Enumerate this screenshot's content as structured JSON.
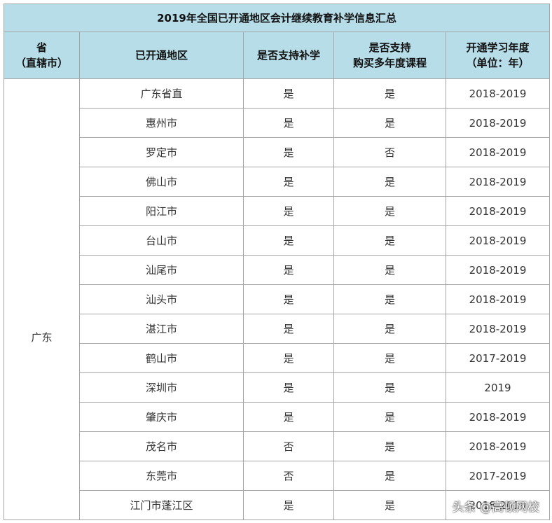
{
  "title": "2019年全国已开通地区会计继续教育补学信息汇总",
  "headers": [
    [
      "省",
      "（直辖市）"
    ],
    [
      "已开通地区"
    ],
    [
      "是否支持补学"
    ],
    [
      "是否支持",
      "购买多年度课程"
    ],
    [
      "开通学习年度",
      "（单位：年）"
    ]
  ],
  "province": "广东",
  "rows": [
    [
      "广东省直",
      "是",
      "是",
      "2018-2019"
    ],
    [
      "惠州市",
      "是",
      "是",
      "2018-2019"
    ],
    [
      "罗定市",
      "是",
      "否",
      "2018-2019"
    ],
    [
      "佛山市",
      "是",
      "是",
      "2018-2019"
    ],
    [
      "阳江市",
      "是",
      "是",
      "2018-2019"
    ],
    [
      "台山市",
      "是",
      "是",
      "2018-2019"
    ],
    [
      "汕尾市",
      "是",
      "是",
      "2018-2019"
    ],
    [
      "汕头市",
      "是",
      "是",
      "2018-2019"
    ],
    [
      "湛江市",
      "是",
      "是",
      "2018-2019"
    ],
    [
      "鹤山市",
      "是",
      "是",
      "2017-2019"
    ],
    [
      "深圳市",
      "是",
      "是",
      "2019"
    ],
    [
      "肇庆市",
      "是",
      "是",
      "2018-2019"
    ],
    [
      "茂名市",
      "否",
      "是",
      "2018-2019"
    ],
    [
      "东莞市",
      "否",
      "是",
      "2017-2019"
    ],
    [
      "江门市蓬江区",
      "是",
      "是",
      "2018-2019"
    ]
  ],
  "watermark": "头条 @高顿网校"
}
